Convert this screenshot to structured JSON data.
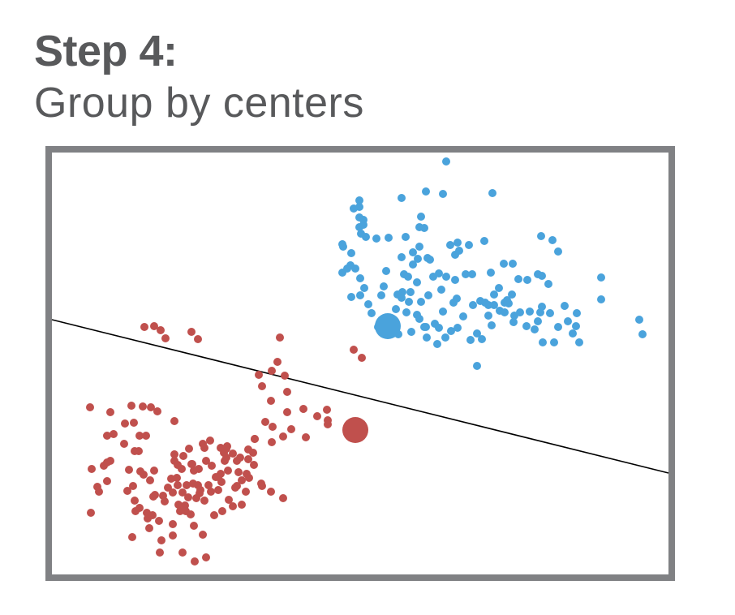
{
  "header": {
    "title": "Step 4:",
    "subtitle": "Group by centers"
  },
  "colors": {
    "frame": "#808184",
    "blue_cluster": "#4aa3dc",
    "red_cluster": "#c0504d",
    "boundary": "#000000"
  },
  "chart_data": {
    "type": "scatter",
    "title": "",
    "xlabel": "",
    "ylabel": "",
    "grid": false,
    "legend": "none",
    "xlim": [
      0,
      760
    ],
    "ylim": [
      0,
      520
    ],
    "boundary_line": [
      [
        0,
        314
      ],
      [
        760,
        125
      ]
    ],
    "series": [
      {
        "key": "blue",
        "centroid": [
          414,
          306
        ],
        "points": [
          [
            486,
            509
          ],
          [
            461,
            472
          ],
          [
            431,
            464
          ],
          [
            455,
            441
          ],
          [
            453,
            428
          ],
          [
            459,
            427
          ],
          [
            436,
            416
          ],
          [
            453,
            404
          ],
          [
            463,
            390
          ],
          [
            497,
            394
          ],
          [
            502,
            399
          ],
          [
            369,
            396
          ],
          [
            359,
            404
          ],
          [
            415,
            415
          ],
          [
            491,
            406
          ],
          [
            500,
            409
          ],
          [
            514,
            406
          ],
          [
            533,
            411
          ],
          [
            445,
            397
          ],
          [
            445,
            382
          ],
          [
            451,
            389
          ],
          [
            466,
            388
          ],
          [
            557,
            383
          ],
          [
            568,
            383
          ],
          [
            603,
            417
          ],
          [
            617,
            412
          ],
          [
            624,
            398
          ],
          [
            541,
            372
          ],
          [
            518,
            370
          ],
          [
            510,
            370
          ],
          [
            486,
            367
          ],
          [
            470,
            367
          ],
          [
            551,
            353
          ],
          [
            575,
            364
          ],
          [
            586,
            363
          ],
          [
            599,
            370
          ],
          [
            604,
            368
          ],
          [
            612,
            358
          ],
          [
            567,
            345
          ],
          [
            545,
            345
          ],
          [
            558,
            335
          ],
          [
            558,
            323
          ],
          [
            570,
            319
          ],
          [
            577,
            323
          ],
          [
            589,
            324
          ],
          [
            599,
            312
          ],
          [
            602,
            323
          ],
          [
            604,
            330
          ],
          [
            614,
            322
          ],
          [
            624,
            305
          ],
          [
            636,
            312
          ],
          [
            647,
            322
          ],
          [
            677,
            339
          ],
          [
            677,
            366
          ],
          [
            632,
            331
          ],
          [
            642,
            297
          ],
          [
            477,
            371
          ],
          [
            497,
            363
          ],
          [
            480,
            351
          ],
          [
            499,
            340
          ],
          [
            495,
            335
          ],
          [
            482,
            324
          ],
          [
            464,
            344
          ],
          [
            455,
            336
          ],
          [
            440,
            336
          ],
          [
            450,
            320
          ],
          [
            459,
            305
          ],
          [
            462,
            292
          ],
          [
            475,
            284
          ],
          [
            485,
            292
          ],
          [
            492,
            300
          ],
          [
            500,
            304
          ],
          [
            516,
            289
          ],
          [
            530,
            290
          ],
          [
            542,
            307
          ],
          [
            538,
            319
          ],
          [
            524,
            297
          ],
          [
            507,
            318
          ],
          [
            519,
            332
          ],
          [
            528,
            337
          ],
          [
            534,
            335
          ],
          [
            538,
            332
          ],
          [
            552,
            325
          ],
          [
            561,
            338
          ],
          [
            563,
            334
          ],
          [
            569,
            311
          ],
          [
            585,
            306
          ],
          [
            595,
            302
          ],
          [
            605,
            286
          ],
          [
            619,
            286
          ],
          [
            646,
            306
          ],
          [
            650,
            286
          ],
          [
            728,
            296
          ],
          [
            724,
            314
          ],
          [
            369,
            342
          ],
          [
            380,
            344
          ],
          [
            385,
            353
          ],
          [
            380,
            365
          ],
          [
            374,
            377
          ],
          [
            364,
            377
          ],
          [
            434,
            370
          ],
          [
            439,
            367
          ],
          [
            450,
            360
          ],
          [
            442,
            348
          ],
          [
            432,
            348
          ],
          [
            426,
            345
          ],
          [
            406,
            344
          ],
          [
            390,
            333
          ],
          [
            394,
            322
          ],
          [
            402,
            305
          ],
          [
            410,
            300
          ],
          [
            427,
            296
          ],
          [
            443,
            299
          ],
          [
            461,
            305
          ],
          [
            477,
            304
          ],
          [
            472,
            309
          ],
          [
            453,
            315
          ],
          [
            437,
            323
          ],
          [
            424,
            327
          ],
          [
            431,
            341
          ],
          [
            409,
            355
          ],
          [
            412,
            374
          ],
          [
            431,
            391
          ],
          [
            381,
            420
          ],
          [
            379,
            428
          ],
          [
            384,
            431
          ],
          [
            384,
            437
          ],
          [
            379,
            440
          ],
          [
            379,
            453
          ],
          [
            372,
            451
          ],
          [
            387,
            416
          ],
          [
            379,
            461
          ],
          [
            400,
            414
          ],
          [
            358,
            372
          ],
          [
            368,
            381
          ],
          [
            358,
            407
          ],
          [
            543,
            470
          ],
          [
            482,
            469
          ],
          [
            545,
            332
          ],
          [
            524,
            257
          ]
        ]
      },
      {
        "key": "red",
        "centroid": [
          374,
          178
        ],
        "points": [
          [
            114,
            305
          ],
          [
            126,
            306
          ],
          [
            134,
            301
          ],
          [
            172,
            299
          ],
          [
            180,
            290
          ],
          [
            140,
            291
          ],
          [
            281,
            292
          ],
          [
            372,
            277
          ],
          [
            382,
            267
          ],
          [
            278,
            262
          ],
          [
            271,
            251
          ],
          [
            287,
            245
          ],
          [
            290,
            225
          ],
          [
            255,
            246
          ],
          [
            259,
            232
          ],
          [
            270,
            214
          ],
          [
            290,
            200
          ],
          [
            263,
            188
          ],
          [
            339,
            203
          ],
          [
            340,
            190
          ],
          [
            327,
            195
          ],
          [
            340,
            185
          ],
          [
            310,
            204
          ],
          [
            313,
            169
          ],
          [
            295,
            179
          ],
          [
            285,
            170
          ],
          [
            271,
            163
          ],
          [
            272,
            182
          ],
          [
            250,
            167
          ],
          [
            242,
            154
          ],
          [
            242,
            142
          ],
          [
            232,
            144
          ],
          [
            243,
            119
          ],
          [
            230,
            126
          ],
          [
            208,
            124
          ],
          [
            197,
            134
          ],
          [
            190,
            140
          ],
          [
            173,
            136
          ],
          [
            181,
            130
          ],
          [
            174,
            112
          ],
          [
            161,
            101
          ],
          [
            168,
            95
          ],
          [
            156,
            86
          ],
          [
            165,
            78
          ],
          [
            171,
            74
          ],
          [
            175,
            60
          ],
          [
            186,
            49
          ],
          [
            149,
            48
          ],
          [
            190,
            21
          ],
          [
            176,
            16
          ],
          [
            161,
            27
          ],
          [
            133,
            27
          ],
          [
            135,
            42
          ],
          [
            99,
            46
          ],
          [
            120,
            57
          ],
          [
            117,
            76
          ],
          [
            103,
            78
          ],
          [
            125,
            96
          ],
          [
            149,
            101
          ],
          [
            147,
            118
          ],
          [
            154,
            119
          ],
          [
            160,
            130
          ],
          [
            155,
            135
          ],
          [
            151,
            140
          ],
          [
            151,
            148
          ],
          [
            162,
            146
          ],
          [
            169,
            155
          ],
          [
            186,
            161
          ],
          [
            195,
            165
          ],
          [
            212,
            150
          ],
          [
            213,
            140
          ],
          [
            223,
            149
          ],
          [
            228,
            140
          ],
          [
            248,
            150
          ],
          [
            249,
            135
          ],
          [
            240,
            124
          ],
          [
            234,
            116
          ],
          [
            226,
            107
          ],
          [
            218,
            92
          ],
          [
            223,
            84
          ],
          [
            210,
            78
          ],
          [
            200,
            73
          ],
          [
            188,
            91
          ],
          [
            196,
            102
          ],
          [
            193,
            110
          ],
          [
            180,
            110
          ],
          [
            182,
            100
          ],
          [
            166,
            110
          ],
          [
            155,
            110
          ],
          [
            143,
            107
          ],
          [
            137,
            97
          ],
          [
            127,
            98
          ],
          [
            121,
            116
          ],
          [
            113,
            123
          ],
          [
            100,
            109
          ],
          [
            93,
            103
          ],
          [
            102,
            91
          ],
          [
            108,
            82
          ],
          [
            118,
            69
          ],
          [
            124,
            73
          ],
          [
            132,
            66
          ],
          [
            149,
            62
          ],
          [
            158,
            78
          ],
          [
            164,
            85
          ],
          [
            139,
            90
          ],
          [
            178,
            94
          ],
          [
            183,
            104
          ],
          [
            205,
            104
          ],
          [
            228,
            109
          ],
          [
            234,
            86
          ],
          [
            259,
            109
          ],
          [
            258,
            112
          ],
          [
            270,
            102
          ],
          [
            285,
            94
          ],
          [
            239,
            102
          ],
          [
            215,
            155
          ],
          [
            208,
            156
          ],
          [
            216,
            158
          ],
          [
            215,
            144
          ],
          [
            217,
            128
          ],
          [
            205,
            120
          ],
          [
            209,
            114
          ],
          [
            188,
            156
          ],
          [
            49,
            130
          ],
          [
            48,
            76
          ],
          [
            56,
            108
          ],
          [
            68,
            115
          ],
          [
            72,
            140
          ],
          [
            64,
            134
          ],
          [
            58,
            102
          ],
          [
            47,
            206
          ],
          [
            68,
            171
          ],
          [
            68,
            138
          ],
          [
            95,
            129
          ],
          [
            109,
            127
          ],
          [
            126,
            128
          ],
          [
            107,
            152
          ],
          [
            102,
            152
          ],
          [
            89,
            161
          ],
          [
            108,
            171
          ],
          [
            116,
            171
          ],
          [
            98,
            208
          ],
          [
            130,
            201
          ],
          [
            151,
            189
          ],
          [
            101,
            187
          ],
          [
            90,
            186
          ],
          [
            76,
            173
          ],
          [
            72,
            200
          ],
          [
            172,
            136
          ],
          [
            175,
            128
          ],
          [
            202,
            120
          ],
          [
            250,
            167
          ],
          [
            112,
            207
          ],
          [
            122,
            206
          ]
        ]
      }
    ]
  }
}
